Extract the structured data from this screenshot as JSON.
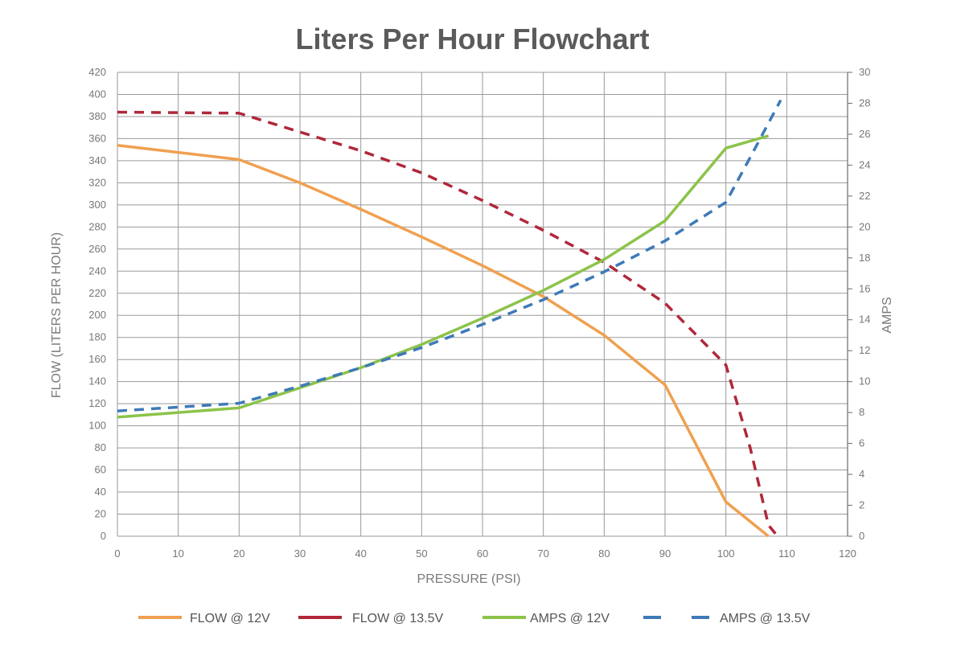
{
  "chart_data": {
    "type": "line",
    "title": "Liters Per Hour Flowchart",
    "xlabel": "PRESSURE (PSI)",
    "ylabel": "FLOW (LITERS PER HOUR)",
    "y2label": "AMPS",
    "xlim": [
      0,
      120
    ],
    "ylim": [
      0,
      420
    ],
    "y2lim": [
      0,
      30
    ],
    "x_ticks": [
      0,
      10,
      20,
      30,
      40,
      50,
      60,
      70,
      80,
      90,
      100,
      110,
      120
    ],
    "y_ticks": [
      0,
      20,
      40,
      60,
      80,
      100,
      120,
      140,
      160,
      180,
      200,
      220,
      240,
      260,
      280,
      300,
      320,
      340,
      360,
      380,
      400,
      420
    ],
    "y2_ticks": [
      0,
      2,
      4,
      6,
      8,
      10,
      12,
      14,
      16,
      18,
      20,
      22,
      24,
      26,
      28,
      30
    ],
    "grid": true,
    "legend_position": "bottom",
    "series": [
      {
        "name": "FLOW @ 12V",
        "axis": "left",
        "color": "#f0a050",
        "style": "solid",
        "points": [
          [
            0,
            354
          ],
          [
            20,
            341
          ],
          [
            30,
            320
          ],
          [
            40,
            296
          ],
          [
            50,
            271
          ],
          [
            60,
            245
          ],
          [
            70,
            217
          ],
          [
            80,
            182
          ],
          [
            90,
            137
          ],
          [
            100,
            31
          ],
          [
            107,
            0
          ]
        ]
      },
      {
        "name": "FLOW @ 13.5V",
        "axis": "left",
        "color": "#b0283a",
        "style": "dashed",
        "points": [
          [
            0,
            384
          ],
          [
            20,
            383
          ],
          [
            30,
            366
          ],
          [
            40,
            349
          ],
          [
            50,
            329
          ],
          [
            60,
            304
          ],
          [
            70,
            277
          ],
          [
            80,
            248
          ],
          [
            90,
            211
          ],
          [
            100,
            155
          ],
          [
            104,
            80
          ],
          [
            107,
            10
          ],
          [
            108.5,
            0
          ]
        ]
      },
      {
        "name": "AMPS @ 12V",
        "axis": "right",
        "color": "#8cc34a",
        "style": "solid",
        "points": [
          [
            0,
            7.7
          ],
          [
            20,
            8.3
          ],
          [
            30,
            9.6
          ],
          [
            40,
            10.9
          ],
          [
            50,
            12.4
          ],
          [
            60,
            14.1
          ],
          [
            70,
            15.9
          ],
          [
            80,
            17.9
          ],
          [
            90,
            20.4
          ],
          [
            100,
            25.1
          ],
          [
            107,
            25.9
          ]
        ]
      },
      {
        "name": "AMPS @ 13.5V",
        "axis": "right",
        "color": "#3e7ab8",
        "style": "dashed",
        "points": [
          [
            0,
            8.1
          ],
          [
            20,
            8.6
          ],
          [
            30,
            9.7
          ],
          [
            40,
            10.9
          ],
          [
            50,
            12.2
          ],
          [
            60,
            13.7
          ],
          [
            70,
            15.3
          ],
          [
            80,
            17.1
          ],
          [
            90,
            19.1
          ],
          [
            100,
            21.6
          ],
          [
            104,
            24.5
          ],
          [
            109,
            28.2
          ]
        ]
      }
    ]
  }
}
